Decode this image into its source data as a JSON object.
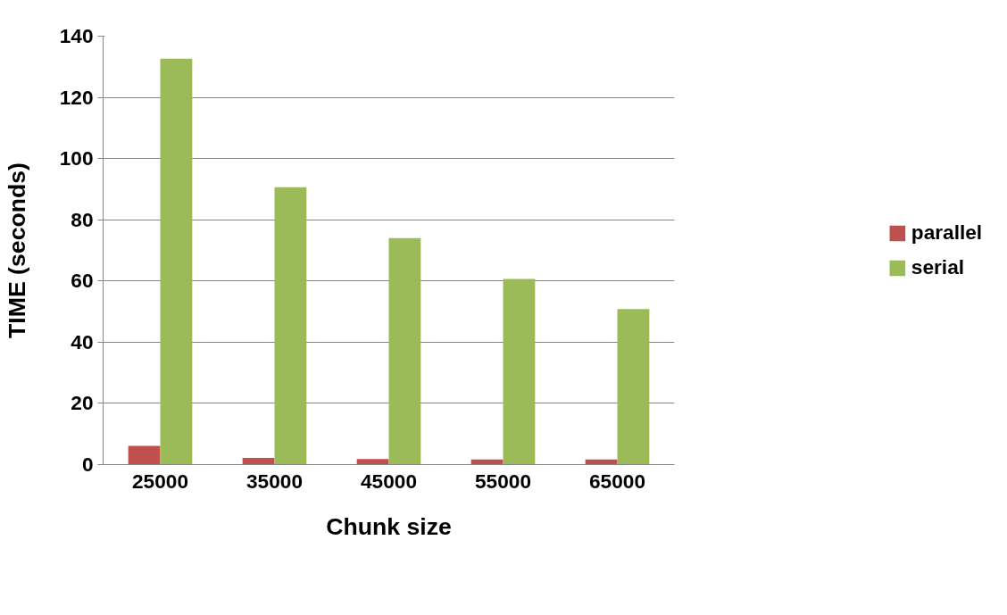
{
  "chart_data": {
    "type": "bar",
    "xlabel": "Chunk size",
    "ylabel": "TIME (seconds)",
    "categories": [
      "25000",
      "35000",
      "45000",
      "55000",
      "65000"
    ],
    "series": [
      {
        "name": "parallel",
        "color": "#c0504d",
        "values": [
          6.1,
          2.2,
          1.8,
          1.7,
          1.7
        ]
      },
      {
        "name": "serial",
        "color": "#9bbb59",
        "values": [
          132.6,
          90.6,
          74.0,
          60.7,
          50.8
        ]
      }
    ],
    "ylim": [
      0,
      140
    ],
    "yticks": [
      0,
      20,
      40,
      60,
      80,
      100,
      120,
      140
    ],
    "grid": "y",
    "legend": "right"
  }
}
